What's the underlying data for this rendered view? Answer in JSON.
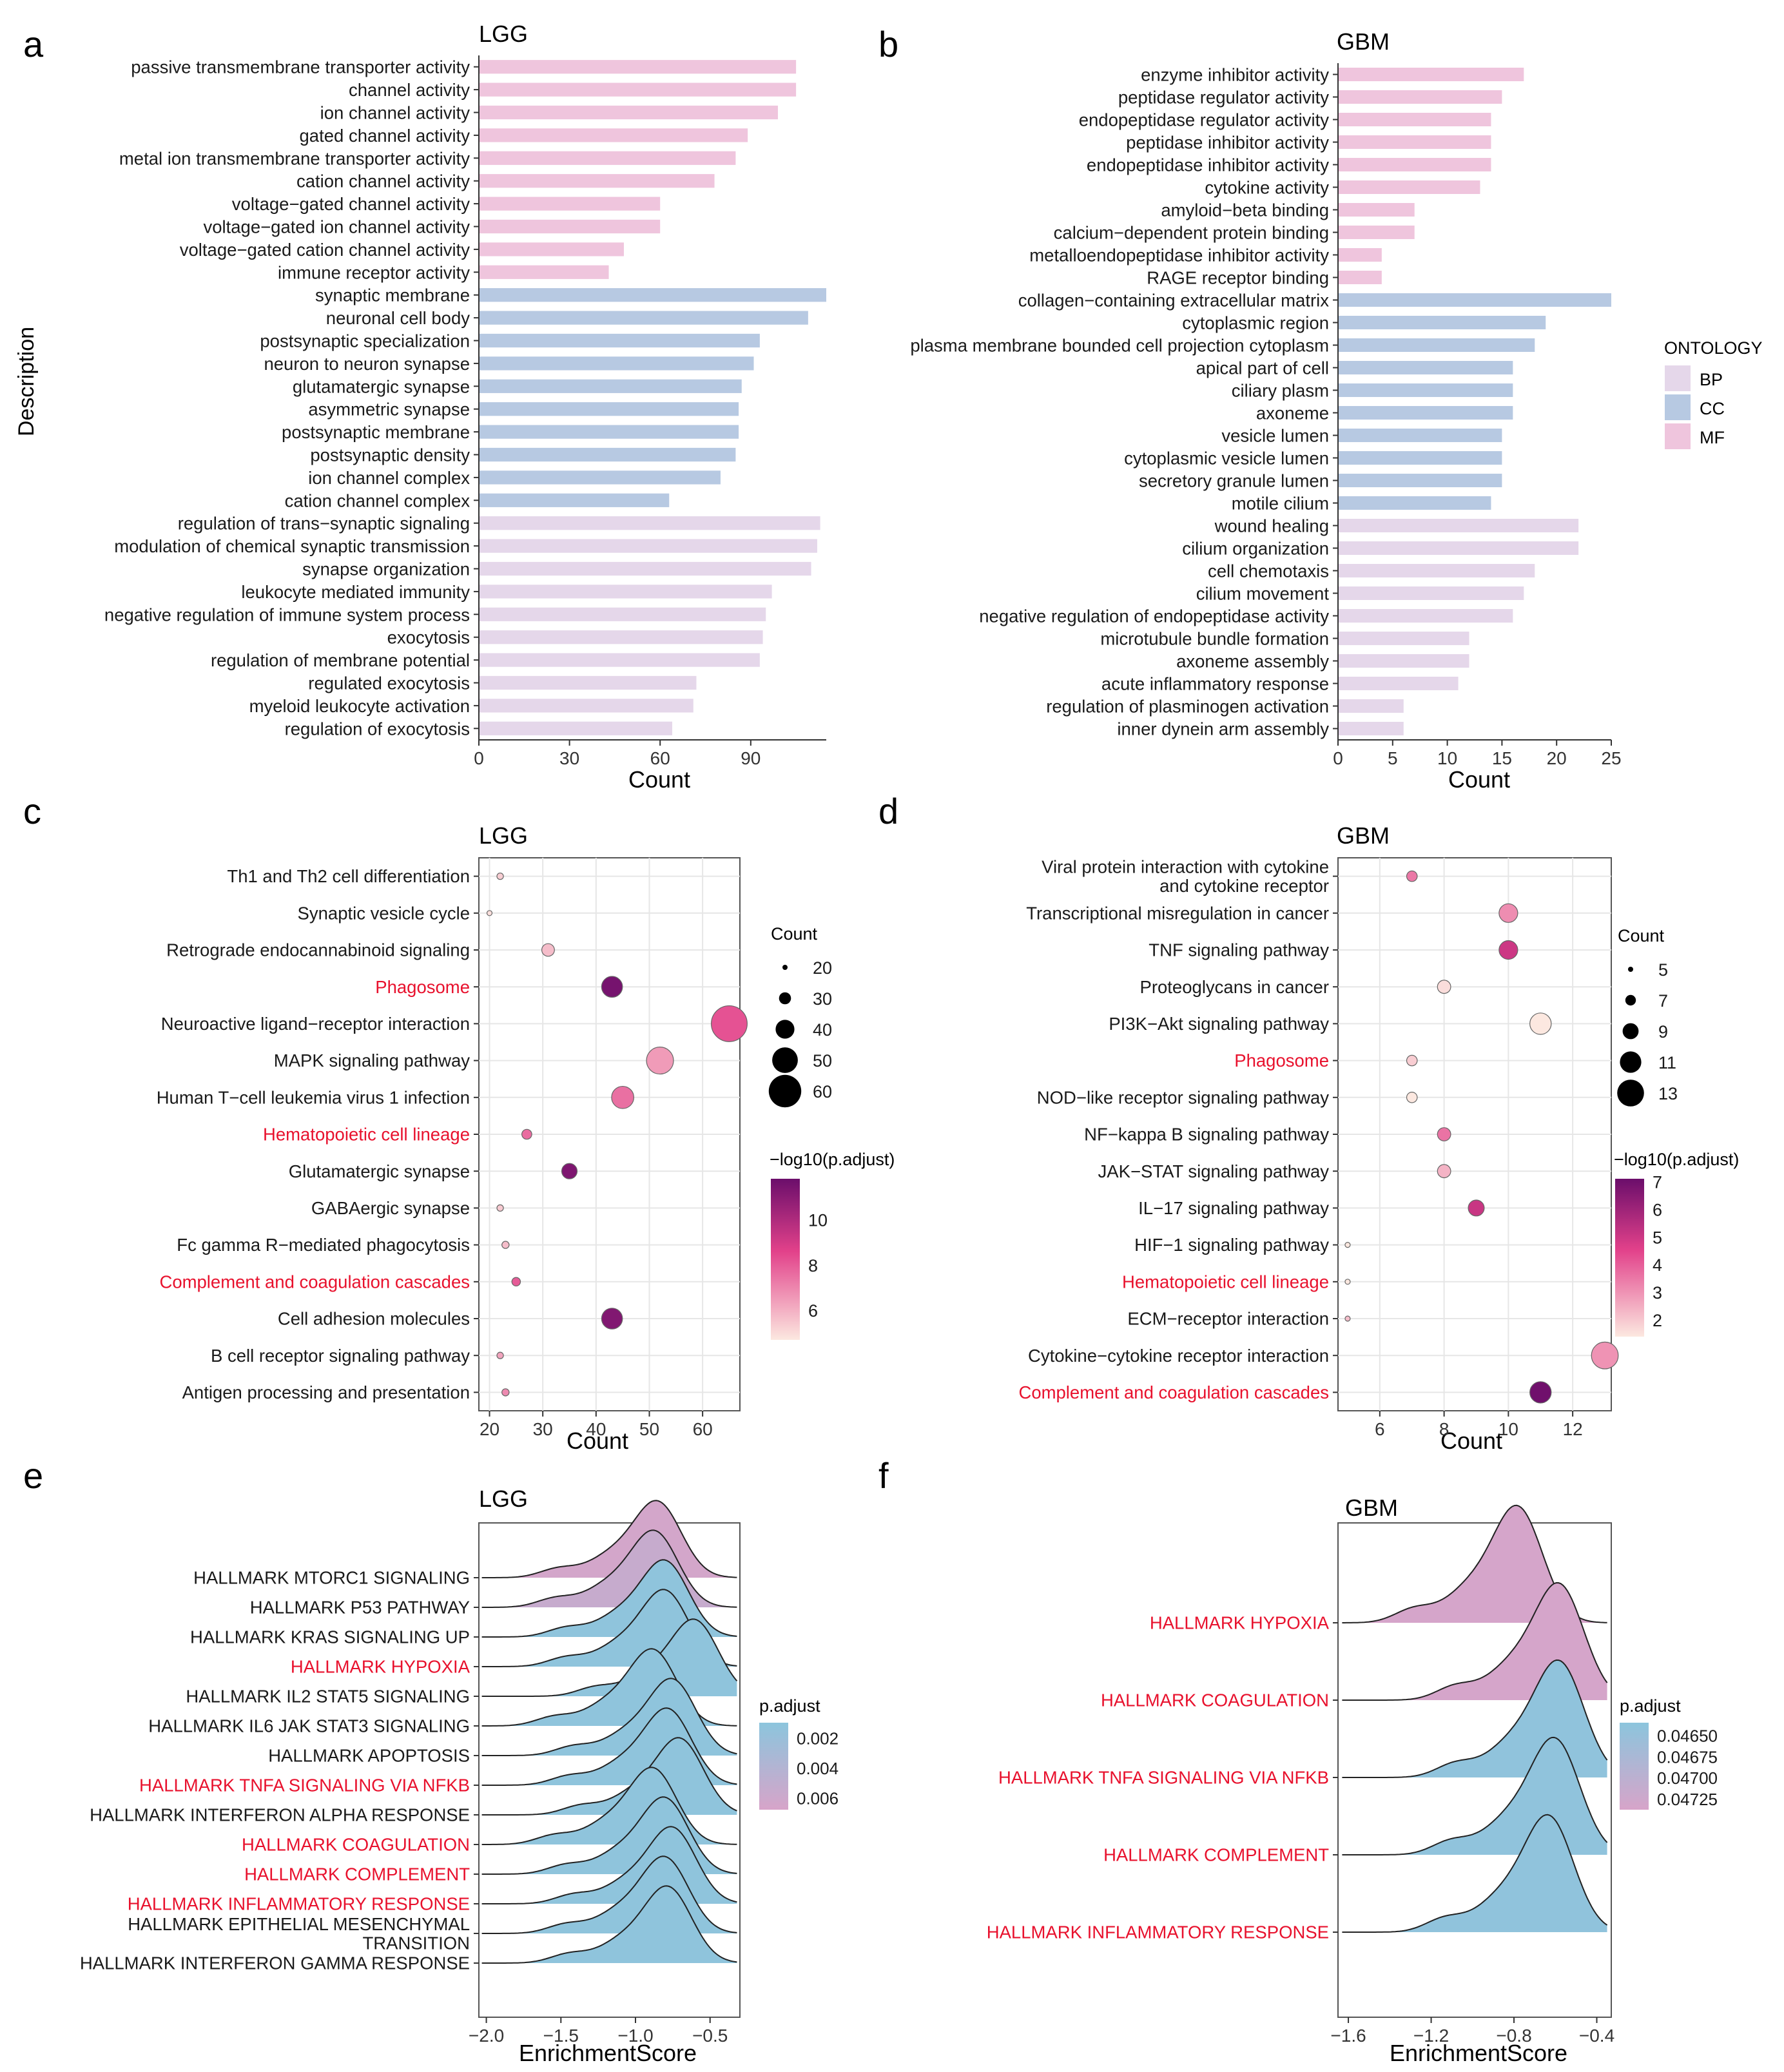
{
  "chart_data": [
    {
      "id": "a",
      "panel_letter": "a",
      "type": "bar",
      "title": "LGG",
      "xlabel": "Count",
      "ylabel": "Description",
      "xlim": [
        0,
        115
      ],
      "xticks": [
        0,
        30,
        60,
        90
      ],
      "categories": [
        "passive transmembrane transporter activity",
        "channel activity",
        "ion channel activity",
        "gated channel activity",
        "metal ion transmembrane transporter activity",
        "cation channel activity",
        "voltage−gated channel activity",
        "voltage−gated ion channel activity",
        "voltage−gated cation channel activity",
        "immune receptor activity",
        "synaptic membrane",
        "neuronal cell body",
        "postsynaptic specialization",
        "neuron to neuron synapse",
        "glutamatergic synapse",
        "asymmetric synapse",
        "postsynaptic membrane",
        "postsynaptic density",
        "ion channel complex",
        "cation channel complex",
        "regulation of trans−synaptic signaling",
        "modulation of chemical synaptic transmission",
        "synapse organization",
        "leukocyte mediated immunity",
        "negative regulation of immune system process",
        "exocytosis",
        "regulation of membrane potential",
        "regulated exocytosis",
        "myeloid leukocyte activation",
        "regulation of exocytosis"
      ],
      "values": [
        105,
        105,
        99,
        89,
        85,
        78,
        60,
        60,
        48,
        43,
        115,
        109,
        93,
        91,
        87,
        86,
        86,
        85,
        80,
        63,
        113,
        112,
        110,
        97,
        95,
        94,
        93,
        72,
        71,
        64
      ],
      "groups": [
        "MF",
        "MF",
        "MF",
        "MF",
        "MF",
        "MF",
        "MF",
        "MF",
        "MF",
        "MF",
        "CC",
        "CC",
        "CC",
        "CC",
        "CC",
        "CC",
        "CC",
        "CC",
        "CC",
        "CC",
        "BP",
        "BP",
        "BP",
        "BP",
        "BP",
        "BP",
        "BP",
        "BP",
        "BP",
        "BP"
      ]
    },
    {
      "id": "b",
      "panel_letter": "b",
      "type": "bar",
      "title": "GBM",
      "xlabel": "Count",
      "ylabel": "",
      "xlim": [
        0,
        25
      ],
      "xticks": [
        0,
        5,
        10,
        15,
        20,
        25
      ],
      "categories": [
        "enzyme inhibitor activity",
        "peptidase regulator activity",
        "endopeptidase regulator activity",
        "peptidase inhibitor activity",
        "endopeptidase inhibitor activity",
        "cytokine activity",
        "amyloid−beta binding",
        "calcium−dependent protein binding",
        "metalloendopeptidase inhibitor activity",
        "RAGE receptor binding",
        "collagen−containing extracellular matrix",
        "cytoplasmic region",
        "plasma membrane bounded cell projection cytoplasm",
        "apical part of cell",
        "ciliary plasm",
        "axoneme",
        "vesicle lumen",
        "cytoplasmic vesicle lumen",
        "secretory granule lumen",
        "motile cilium",
        "wound healing",
        "cilium organization",
        "cell chemotaxis",
        "cilium movement",
        "negative regulation of endopeptidase activity",
        "microtubule bundle formation",
        "axoneme assembly",
        "acute inflammatory response",
        "regulation of plasminogen activation",
        "inner dynein arm assembly"
      ],
      "values": [
        17,
        15,
        14,
        14,
        14,
        13,
        7,
        7,
        4,
        4,
        25,
        19,
        18,
        16,
        16,
        16,
        15,
        15,
        15,
        14,
        22,
        22,
        18,
        17,
        16,
        12,
        12,
        11,
        6,
        6
      ],
      "groups": [
        "MF",
        "MF",
        "MF",
        "MF",
        "MF",
        "MF",
        "MF",
        "MF",
        "MF",
        "MF",
        "CC",
        "CC",
        "CC",
        "CC",
        "CC",
        "CC",
        "CC",
        "CC",
        "CC",
        "CC",
        "BP",
        "BP",
        "BP",
        "BP",
        "BP",
        "BP",
        "BP",
        "BP",
        "BP",
        "BP"
      ]
    },
    {
      "id": "c",
      "panel_letter": "c",
      "type": "scatter",
      "title": "LGG",
      "xlabel": "Count",
      "xlim": [
        18,
        67
      ],
      "xticks": [
        20,
        30,
        40,
        50,
        60
      ],
      "categories": [
        "Th1 and Th2 cell differentiation",
        "Synaptic vesicle cycle",
        "Retrograde endocannabinoid signaling",
        "Phagosome",
        "Neuroactive ligand−receptor interaction",
        "MAPK signaling pathway",
        "Human T−cell leukemia virus 1 infection",
        "Hematopoietic cell lineage",
        "Glutamatergic synapse",
        "GABAergic synapse",
        "Fc gamma R−mediated phagocytosis",
        "Complement and coagulation cascades",
        "Cell adhesion molecules",
        "B cell receptor signaling pathway",
        "Antigen processing and presentation"
      ],
      "highlight": [
        false,
        false,
        false,
        true,
        false,
        false,
        false,
        true,
        false,
        false,
        false,
        true,
        false,
        false,
        false
      ],
      "x": [
        22,
        20,
        31,
        43,
        65,
        52,
        45,
        27,
        35,
        22,
        23,
        25,
        43,
        22,
        23
      ],
      "color_values": [
        5.3,
        4.9,
        5.7,
        11.5,
        8.2,
        6.5,
        7.5,
        7.6,
        11.3,
        5.4,
        5.7,
        8.0,
        11.2,
        6.3,
        6.9
      ],
      "legend": {
        "size_title": "Count",
        "size_breaks": [
          20,
          30,
          40,
          50,
          60
        ],
        "color_title": "−log10(p.adjust)",
        "color_ticks": [
          6,
          8,
          10
        ],
        "color_range": [
          4.7,
          11.8
        ]
      }
    },
    {
      "id": "d",
      "panel_letter": "d",
      "type": "scatter",
      "title": "GBM",
      "xlabel": "Count",
      "xlim": [
        4.7,
        13.2
      ],
      "xticks": [
        6,
        8,
        10,
        12
      ],
      "categories": [
        "Viral protein interaction with cytokine\nand cytokine receptor",
        "Transcriptional misregulation in cancer",
        "TNF signaling pathway",
        "Proteoglycans in cancer",
        "PI3K−Akt signaling pathway",
        "Phagosome",
        "NOD−like receptor signaling pathway",
        "NF−kappa B signaling pathway",
        "JAK−STAT signaling pathway",
        "IL−17 signaling pathway",
        "HIF−1 signaling pathway",
        "Hematopoietic cell lineage",
        "ECM−receptor interaction",
        "Cytokine−cytokine receptor interaction",
        "Complement and coagulation cascades"
      ],
      "highlight": [
        false,
        false,
        false,
        false,
        false,
        true,
        false,
        false,
        false,
        false,
        false,
        true,
        false,
        false,
        true
      ],
      "x": [
        7,
        10,
        10,
        8,
        11,
        7,
        7,
        8,
        8,
        9,
        5,
        5,
        5,
        13,
        11
      ],
      "color_values": [
        3.5,
        3.1,
        5.0,
        1.6,
        1.3,
        1.9,
        1.3,
        3.6,
        2.4,
        5.1,
        1.3,
        1.3,
        2.2,
        3.0,
        7.0
      ],
      "legend": {
        "size_title": "Count",
        "size_breaks": [
          5,
          7,
          9,
          11,
          13
        ],
        "color_title": "−log10(p.adjust)",
        "color_ticks": [
          2,
          3,
          4,
          5,
          6,
          7
        ],
        "color_range": [
          1.4,
          7.1
        ]
      }
    },
    {
      "id": "e",
      "panel_letter": "e",
      "type": "area",
      "subtype": "ridgeline",
      "title": "LGG",
      "xlabel": "EnrichmentScore",
      "xlim": [
        -2.05,
        -0.3
      ],
      "xticks": [
        -2.0,
        -1.5,
        -1.0,
        -0.5
      ],
      "xtick_labels": [
        "−2.0",
        "−1.5",
        "−1.0",
        "−0.5"
      ],
      "categories": [
        "HALLMARK MTORC1 SIGNALING",
        "HALLMARK P53 PATHWAY",
        "HALLMARK KRAS SIGNALING UP",
        "HALLMARK HYPOXIA",
        "HALLMARK IL2 STAT5 SIGNALING",
        "HALLMARK IL6 JAK STAT3 SIGNALING",
        "HALLMARK APOPTOSIS",
        "HALLMARK TNFA SIGNALING VIA NFKB",
        "HALLMARK INTERFERON ALPHA RESPONSE",
        "HALLMARK COAGULATION",
        "HALLMARK COMPLEMENT",
        "HALLMARK INFLAMMATORY RESPONSE",
        "HALLMARK EPITHELIAL MESENCHYMAL\nTRANSITION",
        "HALLMARK INTERFERON GAMMA RESPONSE"
      ],
      "highlight": [
        false,
        false,
        false,
        true,
        false,
        false,
        false,
        true,
        false,
        true,
        true,
        true,
        false,
        false
      ],
      "peaks": [
        -0.85,
        -0.87,
        -0.8,
        -0.8,
        -0.6,
        -0.88,
        -0.75,
        -0.78,
        -0.7,
        -0.88,
        -0.8,
        -0.75,
        -0.8,
        -0.78
      ],
      "p_adjust": [
        0.0065,
        0.0055,
        0.0012,
        0.0012,
        0.0012,
        0.0012,
        0.0012,
        0.0012,
        0.0012,
        0.0012,
        0.0012,
        0.0012,
        0.0012,
        0.0012
      ],
      "legend": {
        "title": "p.adjust",
        "ticks": [
          0.002,
          0.004,
          0.006
        ],
        "tick_labels": [
          "0.002",
          "0.004",
          "0.006"
        ],
        "range": [
          0.001,
          0.0068
        ]
      }
    },
    {
      "id": "f",
      "panel_letter": "f",
      "type": "area",
      "subtype": "ridgeline",
      "title": "GBM",
      "xlabel": "EnrichmentScore",
      "xlim": [
        -1.65,
        -0.33
      ],
      "xticks": [
        -1.6,
        -1.2,
        -0.8,
        -0.4
      ],
      "xtick_labels": [
        "−1.6",
        "−1.2",
        "−0.8",
        "−0.4"
      ],
      "categories": [
        "HALLMARK HYPOXIA",
        "HALLMARK COAGULATION",
        "HALLMARK TNFA SIGNALING VIA NFKB",
        "HALLMARK COMPLEMENT",
        "HALLMARK INFLAMMATORY RESPONSE"
      ],
      "highlight": [
        true,
        true,
        true,
        true,
        true
      ],
      "peaks": [
        -0.78,
        -0.58,
        -0.58,
        -0.6,
        -0.63
      ],
      "p_adjust": [
        0.04735,
        0.04735,
        0.0464,
        0.0464,
        0.0464
      ],
      "legend": {
        "title": "p.adjust",
        "ticks": [
          0.0465,
          0.04675,
          0.047,
          0.04725
        ],
        "tick_labels": [
          "0.04650",
          "0.04675",
          "0.04700",
          "0.04725"
        ],
        "range": [
          0.04635,
          0.04738
        ]
      }
    }
  ],
  "ontology_legend": {
    "title": "ONTOLOGY",
    "items": [
      "BP",
      "CC",
      "MF"
    ]
  },
  "colors": {
    "BP": "#e5d7ea",
    "CC": "#b7c9e2",
    "MF": "#efc5dd",
    "highlight_text": "#e8112d",
    "ridge_blue": "#8cc5dd",
    "ridge_pink": "#d7a4c9",
    "grad_low": "#fce8e0",
    "grad_mid": "#e2418a",
    "grad_high": "#6b0e6b"
  }
}
